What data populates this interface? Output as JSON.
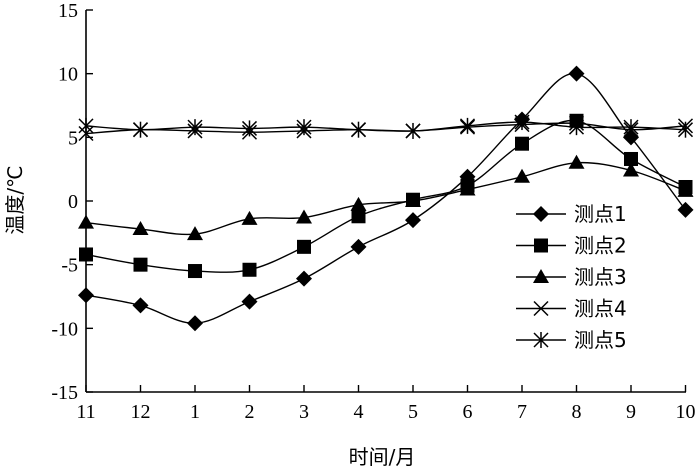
{
  "chart_data": {
    "type": "line",
    "categories": [
      "11",
      "12",
      "1",
      "2",
      "3",
      "4",
      "5",
      "6",
      "7",
      "8",
      "9",
      "10"
    ],
    "xlabel": "时间/月",
    "ylabel": "温度/℃",
    "ylim": [
      -15,
      15
    ],
    "yticks": [
      15,
      10,
      5,
      0,
      -5,
      -10,
      -15
    ],
    "grid": false,
    "legend_position": "right",
    "series": [
      {
        "name": "测点1",
        "marker": "diamond",
        "values": [
          -7.4,
          -8.2,
          -9.6,
          -7.9,
          -6.1,
          -3.6,
          -1.5,
          1.9,
          6.4,
          10.0,
          5.0,
          -0.7
        ]
      },
      {
        "name": "测点2",
        "marker": "square",
        "values": [
          -4.2,
          -5.0,
          -5.5,
          -5.4,
          -3.6,
          -1.2,
          0.1,
          1.2,
          4.5,
          6.3,
          3.3,
          1.1
        ]
      },
      {
        "name": "测点3",
        "marker": "triangle",
        "values": [
          -1.7,
          -2.2,
          -2.6,
          -1.4,
          -1.3,
          -0.3,
          0.0,
          0.9,
          1.9,
          3.0,
          2.4,
          0.8
        ]
      },
      {
        "name": "测点4",
        "marker": "x",
        "values": [
          5.3,
          5.6,
          5.5,
          5.4,
          5.5,
          5.6,
          5.5,
          5.8,
          6.0,
          6.1,
          5.6,
          5.9
        ]
      },
      {
        "name": "测点5",
        "marker": "asterisk",
        "values": [
          5.9,
          5.6,
          5.8,
          5.7,
          5.8,
          5.6,
          5.5,
          5.9,
          6.2,
          5.8,
          5.8,
          5.6
        ]
      }
    ]
  }
}
